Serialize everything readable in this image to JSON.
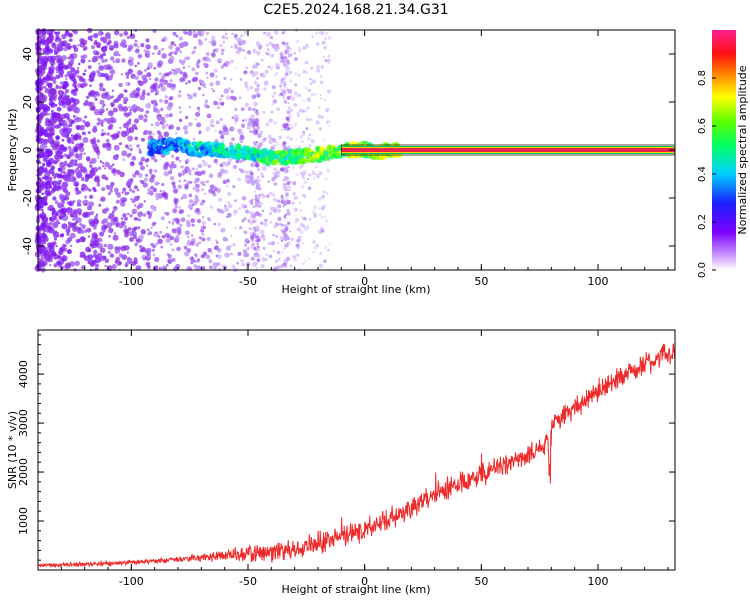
{
  "title": "C2E5.2024.168.21.34.G31",
  "colors": {
    "snr_line": "#ee2b2b",
    "dot_purple": "#8a2be2",
    "ridge": "#e8244a"
  },
  "chart_data": [
    {
      "type": "heatmap",
      "title": "C2E5.2024.168.21.34.G31",
      "xlabel": "Height of straight line (km)",
      "ylabel": "Frequency (Hz)",
      "xlim": [
        -140,
        133
      ],
      "ylim": [
        -50,
        50
      ],
      "x_ticks": [
        -100,
        -50,
        0,
        50,
        100
      ],
      "y_ticks": [
        -40,
        -20,
        0,
        20,
        40
      ],
      "x_tick_labels": [
        "-100",
        "-50",
        "0",
        "50",
        "100"
      ],
      "y_tick_labels": [
        "-40",
        "-20",
        "0",
        "20",
        "40"
      ],
      "colorbar": {
        "label": "Normalized spectral amplitude",
        "range": [
          0,
          1
        ],
        "ticks": [
          "0.0",
          "0.2",
          "0.4",
          "0.6",
          "0.8"
        ],
        "colormap": "rainbow (white-violet-blue-cyan-green-yellow-red-magenta)"
      },
      "ridge": [
        {
          "x": -92,
          "y": 1
        },
        {
          "x": -80,
          "y": 2
        },
        {
          "x": -70,
          "y": 0
        },
        {
          "x": -60,
          "y": 0
        },
        {
          "x": -50,
          "y": -1
        },
        {
          "x": -40,
          "y": -3
        },
        {
          "x": -30,
          "y": -3
        },
        {
          "x": -20,
          "y": -2
        },
        {
          "x": -10,
          "y": 0
        },
        {
          "x": 0,
          "y": 0
        },
        {
          "x": 5,
          "y": -1
        },
        {
          "x": 10,
          "y": 0
        },
        {
          "x": 133,
          "y": 0
        }
      ]
    },
    {
      "type": "line",
      "xlabel": "Height of straight line (km)",
      "ylabel": "SNR (10 * v/v)",
      "xlim": [
        -140,
        133
      ],
      "ylim": [
        0,
        4900
      ],
      "x_ticks": [
        -100,
        -50,
        0,
        50,
        100
      ],
      "y_ticks": [
        1000,
        2000,
        3000,
        4000
      ],
      "x_tick_labels": [
        "-100",
        "-50",
        "0",
        "50",
        "100"
      ],
      "y_tick_labels": [
        "1000",
        "2000",
        "3000",
        "4000"
      ],
      "series": [
        {
          "x": [
            -140,
            -120,
            -100,
            -90,
            -80,
            -70,
            -60,
            -50,
            -40,
            -30,
            -20,
            -10,
            0,
            10,
            20,
            30,
            40,
            50,
            60,
            70,
            79,
            80,
            90,
            100,
            110,
            120,
            133
          ],
          "y": [
            100,
            120,
            150,
            180,
            220,
            260,
            300,
            330,
            360,
            420,
            520,
            700,
            850,
            1000,
            1300,
            1550,
            1750,
            1950,
            2150,
            2350,
            2550,
            3000,
            3300,
            3650,
            3950,
            4200,
            4500
          ]
        }
      ]
    }
  ]
}
